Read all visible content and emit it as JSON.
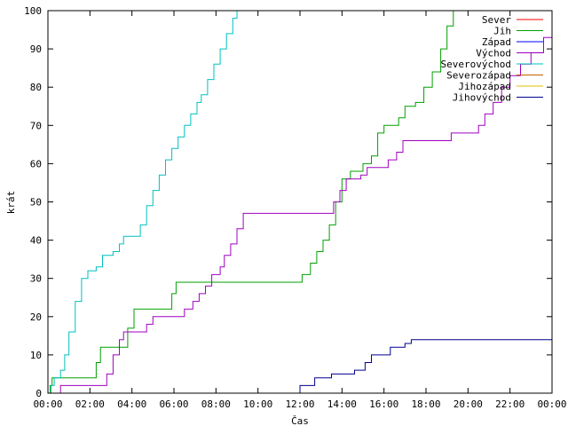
{
  "chart_data": {
    "type": "line",
    "xlabel": "Čas",
    "ylabel": "krát",
    "xlim": [
      0,
      24
    ],
    "ylim": [
      0,
      100
    ],
    "x_ticks": [
      0,
      2,
      4,
      6,
      8,
      10,
      12,
      14,
      16,
      18,
      20,
      22,
      24
    ],
    "x_tick_labels": [
      "00:00",
      "02:00",
      "04:00",
      "06:00",
      "08:00",
      "10:00",
      "12:00",
      "14:00",
      "16:00",
      "18:00",
      "20:00",
      "22:00",
      "00:00"
    ],
    "y_ticks": [
      0,
      10,
      20,
      30,
      40,
      50,
      60,
      70,
      80,
      90,
      100
    ],
    "y_tick_labels": [
      "0",
      "10",
      "20",
      "30",
      "40",
      "50",
      "60",
      "70",
      "80",
      "90",
      "100"
    ],
    "grid": false,
    "legend": "top-right",
    "series": [
      {
        "name": "Sever",
        "color": "#ff0000",
        "points": []
      },
      {
        "name": "Jih",
        "color": "#00a000",
        "points": [
          [
            0,
            0
          ],
          [
            0.1,
            2
          ],
          [
            0.2,
            4
          ],
          [
            2.0,
            4
          ],
          [
            2.3,
            8
          ],
          [
            2.5,
            12
          ],
          [
            3.5,
            12
          ],
          [
            3.8,
            17
          ],
          [
            4.1,
            22
          ],
          [
            5.6,
            22
          ],
          [
            5.9,
            26
          ],
          [
            6.1,
            29
          ],
          [
            11.8,
            29
          ],
          [
            12.1,
            31
          ],
          [
            12.5,
            34
          ],
          [
            12.8,
            37
          ],
          [
            13.1,
            40
          ],
          [
            13.4,
            44
          ],
          [
            13.7,
            50
          ],
          [
            14.0,
            56
          ],
          [
            14.4,
            58
          ],
          [
            15.0,
            60
          ],
          [
            15.4,
            62
          ],
          [
            15.7,
            68
          ],
          [
            16.0,
            70
          ],
          [
            16.7,
            72
          ],
          [
            17.0,
            75
          ],
          [
            17.5,
            76
          ],
          [
            17.9,
            80
          ],
          [
            18.3,
            84
          ],
          [
            18.7,
            90
          ],
          [
            19.0,
            96
          ],
          [
            19.3,
            100
          ]
        ]
      },
      {
        "name": "Západ",
        "color": "#0000ff",
        "points": []
      },
      {
        "name": "Východ",
        "color": "#a000c0",
        "points": [
          [
            0,
            0
          ],
          [
            0.6,
            2
          ],
          [
            2.6,
            2
          ],
          [
            2.8,
            5
          ],
          [
            3.1,
            10
          ],
          [
            3.4,
            14
          ],
          [
            3.6,
            16
          ],
          [
            4.5,
            16
          ],
          [
            4.7,
            18
          ],
          [
            5.0,
            20
          ],
          [
            6.2,
            20
          ],
          [
            6.5,
            22
          ],
          [
            6.9,
            24
          ],
          [
            7.2,
            26
          ],
          [
            7.5,
            28
          ],
          [
            7.8,
            31
          ],
          [
            8.2,
            33
          ],
          [
            8.4,
            36
          ],
          [
            8.7,
            39
          ],
          [
            9.0,
            43
          ],
          [
            9.3,
            47
          ],
          [
            13.3,
            47
          ],
          [
            13.6,
            50
          ],
          [
            13.9,
            53
          ],
          [
            14.2,
            56
          ],
          [
            14.9,
            57
          ],
          [
            15.2,
            59
          ],
          [
            15.9,
            59
          ],
          [
            16.2,
            61
          ],
          [
            16.6,
            63
          ],
          [
            16.9,
            66
          ],
          [
            19.0,
            66
          ],
          [
            19.2,
            68
          ],
          [
            20.2,
            68
          ],
          [
            20.5,
            70
          ],
          [
            20.8,
            73
          ],
          [
            21.2,
            76
          ],
          [
            21.6,
            80
          ],
          [
            22.0,
            83
          ],
          [
            22.5,
            86
          ],
          [
            23.0,
            89
          ],
          [
            23.6,
            93
          ],
          [
            24.0,
            95
          ]
        ]
      },
      {
        "name": "Severovýchod",
        "color": "#00c0c0",
        "points": [
          [
            0,
            0
          ],
          [
            0.15,
            2
          ],
          [
            0.3,
            4
          ],
          [
            0.6,
            6
          ],
          [
            0.8,
            10
          ],
          [
            1.0,
            16
          ],
          [
            1.3,
            24
          ],
          [
            1.6,
            30
          ],
          [
            1.9,
            32
          ],
          [
            2.3,
            33
          ],
          [
            2.6,
            36
          ],
          [
            3.1,
            37
          ],
          [
            3.4,
            39
          ],
          [
            3.6,
            41
          ],
          [
            4.2,
            41
          ],
          [
            4.4,
            44
          ],
          [
            4.7,
            49
          ],
          [
            5.0,
            53
          ],
          [
            5.3,
            57
          ],
          [
            5.6,
            61
          ],
          [
            5.9,
            64
          ],
          [
            6.2,
            67
          ],
          [
            6.5,
            70
          ],
          [
            6.8,
            73
          ],
          [
            7.1,
            76
          ],
          [
            7.3,
            78
          ],
          [
            7.6,
            82
          ],
          [
            7.9,
            86
          ],
          [
            8.2,
            90
          ],
          [
            8.5,
            94
          ],
          [
            8.8,
            98
          ],
          [
            9.0,
            100
          ]
        ]
      },
      {
        "name": "Severozápad",
        "color": "#c06000",
        "points": []
      },
      {
        "name": "Jihozápad",
        "color": "#e0c000",
        "points": []
      },
      {
        "name": "Jihovýchod",
        "color": "#000090",
        "points": [
          [
            0,
            0
          ],
          [
            11.9,
            0
          ],
          [
            12.0,
            2
          ],
          [
            12.7,
            4
          ],
          [
            13.5,
            5
          ],
          [
            14.6,
            6
          ],
          [
            15.1,
            8
          ],
          [
            15.4,
            10
          ],
          [
            16.3,
            12
          ],
          [
            17.0,
            13
          ],
          [
            17.3,
            14
          ],
          [
            24.0,
            14
          ]
        ]
      }
    ]
  }
}
